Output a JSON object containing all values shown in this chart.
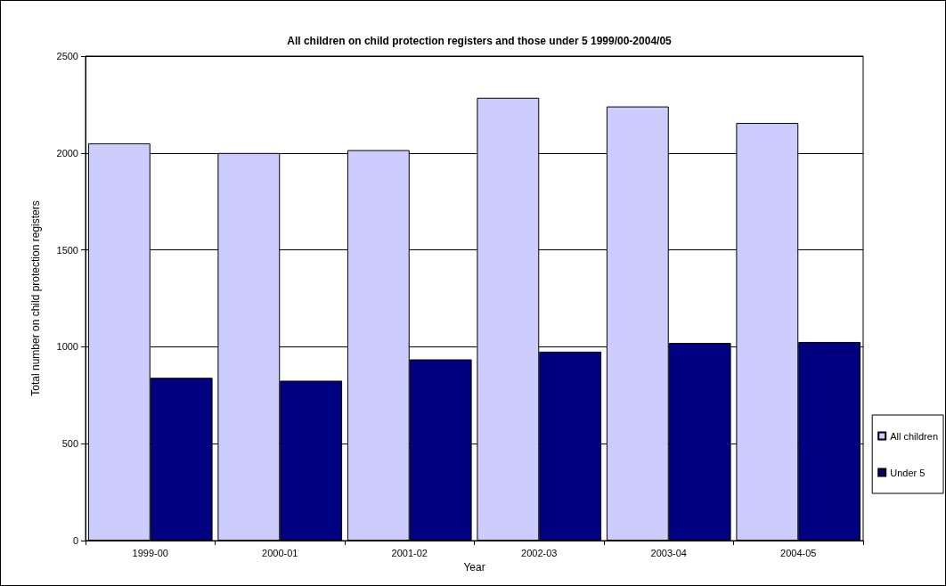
{
  "chart_data": {
    "type": "bar",
    "title": "All children on child protection registers and those under 5 1999/00-2004/05",
    "xlabel": "Year",
    "ylabel": "Total number on child protection registers",
    "categories": [
      "1999-00",
      "2000-01",
      "2001-02",
      "2002-03",
      "2003-04",
      "2004-05"
    ],
    "series": [
      {
        "name": "All children",
        "color": "#ccccff",
        "values": [
          2050,
          2000,
          2015,
          2285,
          2240,
          2155
        ]
      },
      {
        "name": "Under 5",
        "color": "#000080",
        "values": [
          840,
          825,
          935,
          975,
          1020,
          1025
        ]
      }
    ],
    "ylim": [
      0,
      2500
    ],
    "yticks": [
      0,
      500,
      1000,
      1500,
      2000,
      2500
    ],
    "grid": "y",
    "legend": "right"
  }
}
